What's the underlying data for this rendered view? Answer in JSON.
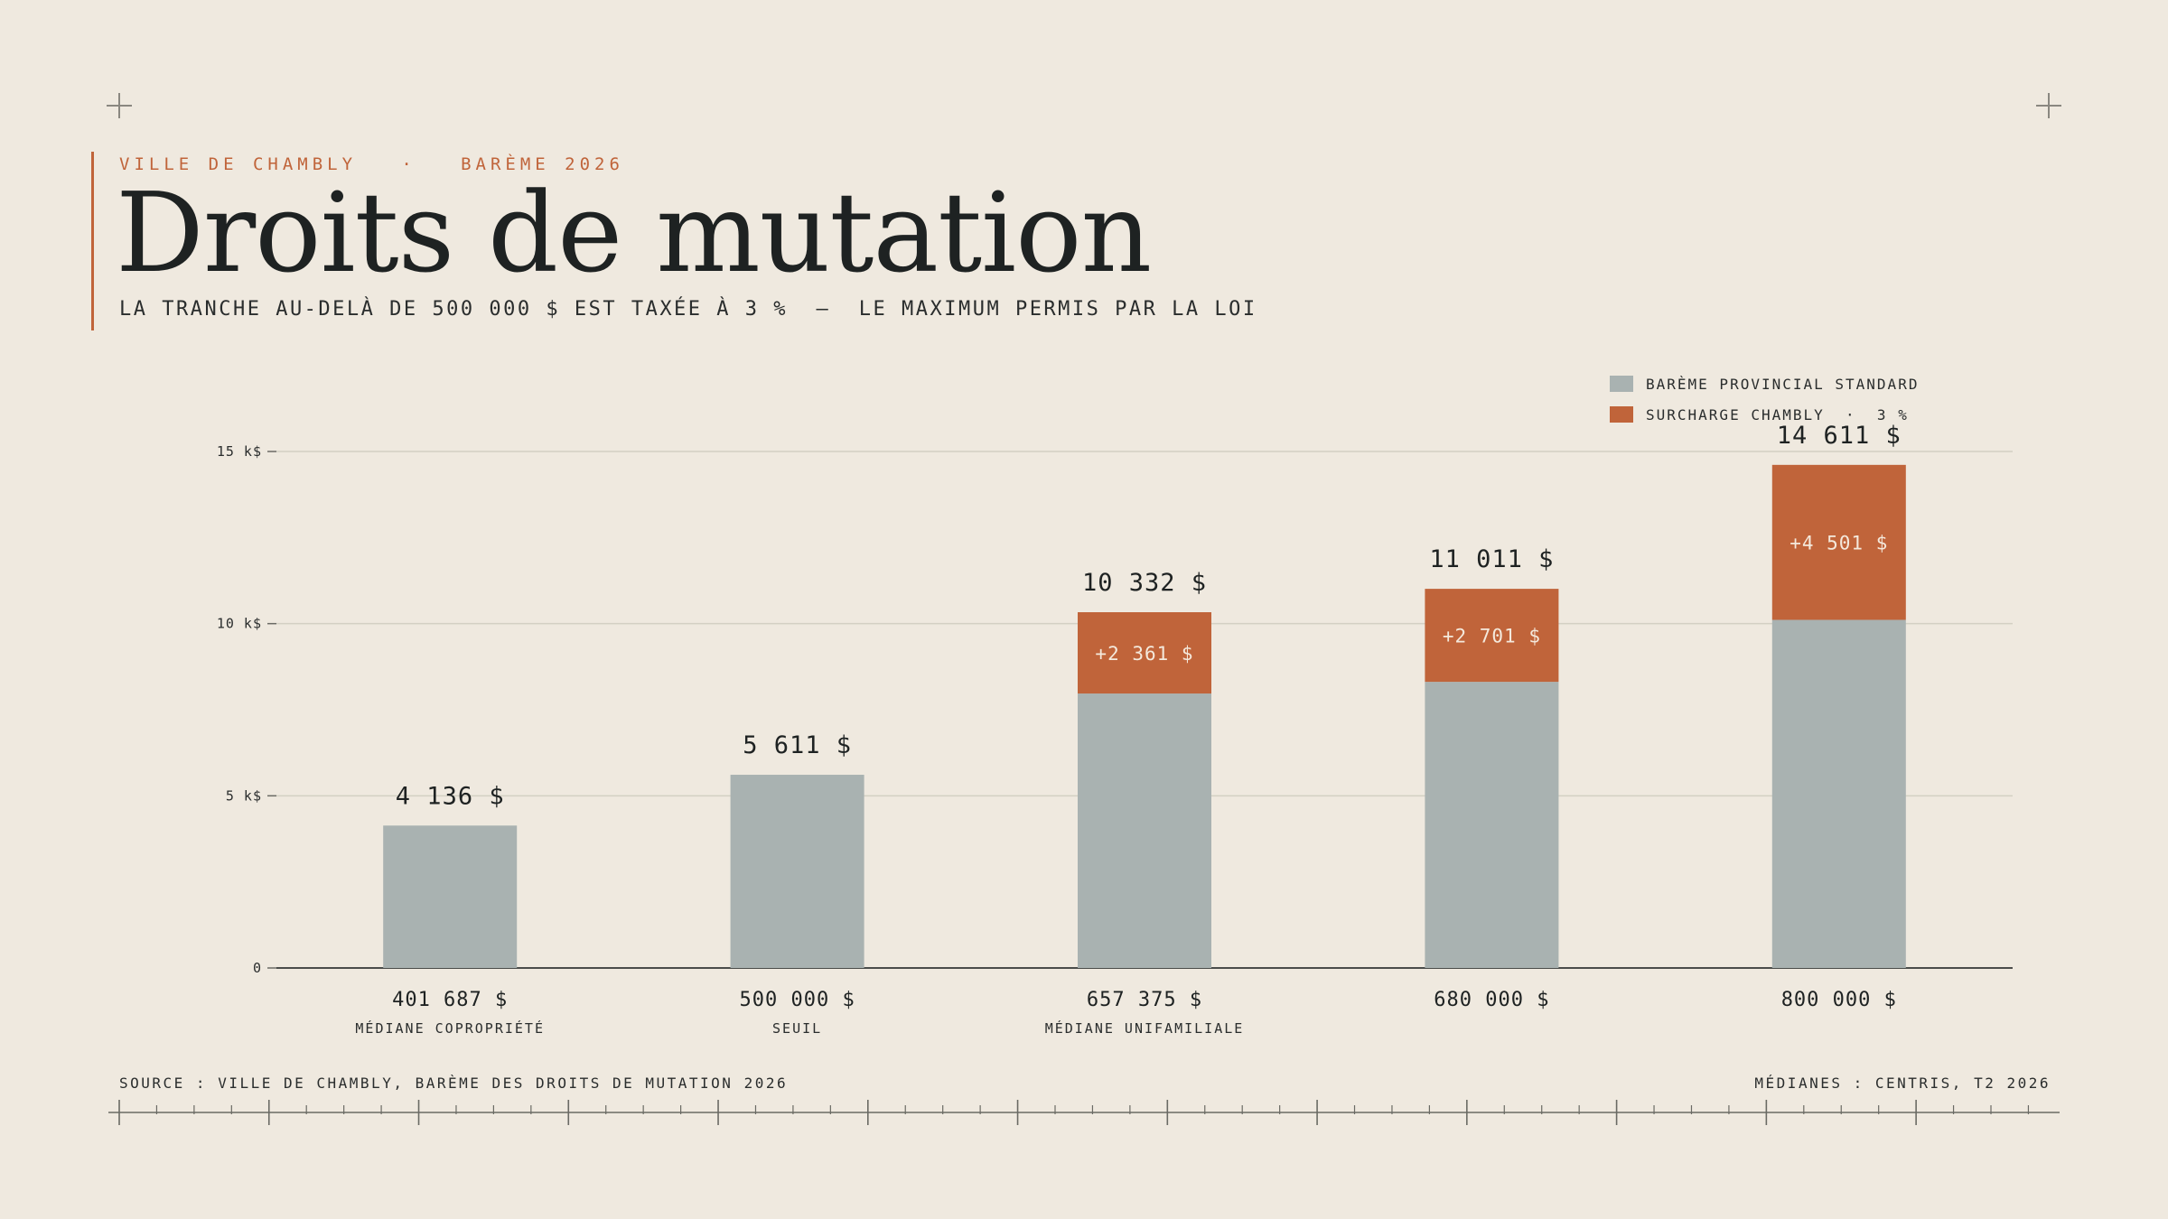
{
  "header": {
    "kicker": "VILLE DE CHAMBLY   ·   BARÈME 2026",
    "title": "Droits de mutation",
    "subtitle": "LA TRANCHE AU-DELÀ DE 500 000 $ EST TAXÉE À 3 %  —  LE MAXIMUM PERMIS PAR LA LOI"
  },
  "legend": {
    "items": [
      {
        "label": "BARÈME PROVINCIAL STANDARD",
        "color": "#a9b2b1"
      },
      {
        "label": "SURCHARGE CHAMBLY  ·  3 %",
        "color": "#c0643a"
      }
    ]
  },
  "footer": {
    "source": "SOURCE : VILLE DE CHAMBLY, BARÈME DES DROITS DE MUTATION 2026",
    "note": "MÉDIANES : CENTRIS, T2 2026"
  },
  "chart_data": {
    "type": "bar",
    "stacked": true,
    "categories": [
      "401 687 $",
      "500 000 $",
      "657 375 $",
      "680 000 $",
      "800 000 $"
    ],
    "category_sublabels": [
      "MÉDIANE COPROPRIÉTÉ",
      "SEUIL",
      "MÉDIANE UNIFAMILIALE",
      "",
      ""
    ],
    "series": [
      {
        "name": "BARÈME PROVINCIAL STANDARD",
        "color": "#a9b2b1",
        "values": [
          4136,
          5611,
          7971,
          8310,
          10110
        ]
      },
      {
        "name": "SURCHARGE CHAMBLY  ·  3 %",
        "color": "#c0643a",
        "values": [
          0,
          0,
          2361,
          2701,
          4501
        ]
      }
    ],
    "total_labels": [
      "4 136 $",
      "5 611 $",
      "10 332 $",
      "11 011 $",
      "14 611 $"
    ],
    "surcharge_labels": [
      "",
      "",
      "+2 361 $",
      "+2 701 $",
      "+4 501 $"
    ],
    "yticks": [
      0,
      5000,
      10000,
      15000
    ],
    "ytick_labels": [
      "0",
      "5 k$",
      "10 k$",
      "15 k$"
    ],
    "ylim": [
      0,
      15000
    ],
    "grid": true,
    "legend_position": "top-right"
  }
}
